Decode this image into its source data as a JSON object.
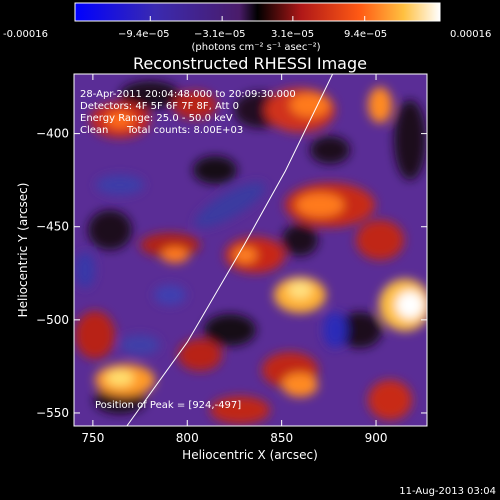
{
  "colorbar": {
    "ticks": [
      "-0.00016",
      "−9.4e−05",
      "−3.1e−05",
      "3.1e−05",
      "9.4e−05",
      "0.00016"
    ],
    "tick_values": [
      -0.00016,
      -9.4e-05,
      -3.1e-05,
      3.1e-05,
      9.4e-05,
      0.00016
    ],
    "units": "(photons cm⁻² s⁻¹ asec⁻²)"
  },
  "chart_data": {
    "type": "heatmap",
    "title": "Reconstructed RHESSI Image",
    "xlabel": "Heliocentric X (arcsec)",
    "ylabel": "Heliocentric Y (arcsec)",
    "xlim": [
      740,
      927
    ],
    "ylim": [
      -557,
      -368
    ],
    "xticks": [
      750,
      800,
      850,
      900
    ],
    "yticks": [
      -400,
      -450,
      -500,
      -550
    ],
    "limb_curve": [
      [
        768,
        -557
      ],
      [
        800,
        -512
      ],
      [
        830,
        -460
      ],
      [
        852,
        -420
      ],
      [
        877,
        -368
      ]
    ],
    "annotations": {
      "time": "28-Apr-2011 20:04:48.000 to 20:09:30.000",
      "detectors": "Detectors: 4F 5F 6F 7F 8F, Att 0",
      "energy": "Energy Range: 25.0 - 50.0 keV",
      "method": "Clean",
      "counts": "Total counts: 8.00E+03",
      "peak": "Position of Peak = [924,-497]"
    },
    "colormap": [
      "#0000ff",
      "#4040a0",
      "#5b2d9e",
      "#000000",
      "#8a1a1a",
      "#d8321e",
      "#ff7a1a",
      "#ffd040",
      "#ffffff"
    ]
  },
  "footer": {
    "date": "11-Aug-2013 03:04"
  }
}
